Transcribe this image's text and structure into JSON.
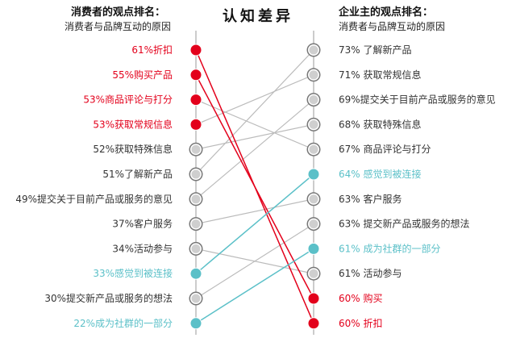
{
  "left": {
    "title": "消费者的观点排名：",
    "subtitle": "消费者与品牌互动的原因"
  },
  "right": {
    "title": "企业主的观点排名：",
    "subtitle": "消费者与品牌互动的原因"
  },
  "center_title": "认知差异",
  "colors": {
    "red": "#e3001b",
    "teal": "#5bc0c8",
    "gray": "#bbbbbb",
    "text": "#333333"
  },
  "chart_data": {
    "type": "slope",
    "left_ranking": [
      {
        "label": "61%折扣",
        "value": 61,
        "color": "red"
      },
      {
        "label": "55%购买产品",
        "value": 55,
        "color": "red"
      },
      {
        "label": "53%商品评论与打分",
        "value": 53,
        "color": "red"
      },
      {
        "label": "53%获取常规信息",
        "value": 53,
        "color": "red"
      },
      {
        "label": "52%获取特殊信息",
        "value": 52,
        "color": "text"
      },
      {
        "label": "51%了解新产品",
        "value": 51,
        "color": "text"
      },
      {
        "label": "49%提交关于目前产品或服务的意见",
        "value": 49,
        "color": "text"
      },
      {
        "label": "37%客户服务",
        "value": 37,
        "color": "text"
      },
      {
        "label": "34%活动参与",
        "value": 34,
        "color": "text"
      },
      {
        "label": "33%感觉到被连接",
        "value": 33,
        "color": "teal"
      },
      {
        "label": "30%提交新产品或服务的想法",
        "value": 30,
        "color": "text"
      },
      {
        "label": "22%成为社群的一部分",
        "value": 22,
        "color": "teal"
      }
    ],
    "right_ranking": [
      {
        "label": "73% 了解新产品",
        "value": 73,
        "color": "text"
      },
      {
        "label": "71% 获取常规信息",
        "value": 71,
        "color": "text"
      },
      {
        "label": "69%提交关于目前产品或服务的意见",
        "value": 69,
        "color": "text"
      },
      {
        "label": "68% 获取特殊信息",
        "value": 68,
        "color": "text"
      },
      {
        "label": "67% 商品评论与打分",
        "value": 67,
        "color": "text"
      },
      {
        "label": "64% 感觉到被连接",
        "value": 64,
        "color": "teal"
      },
      {
        "label": "63% 客户服务",
        "value": 63,
        "color": "text"
      },
      {
        "label": "63% 提交新产品或服务的想法",
        "value": 63,
        "color": "text"
      },
      {
        "label": "61% 成为社群的一部分",
        "value": 61,
        "color": "teal"
      },
      {
        "label": "61% 活动参与",
        "value": 61,
        "color": "text"
      },
      {
        "label": "60% 购买",
        "value": 60,
        "color": "red"
      },
      {
        "label": "60% 折扣",
        "value": 60,
        "color": "red"
      }
    ],
    "links": [
      {
        "from": 0,
        "to": 11,
        "color": "red"
      },
      {
        "from": 1,
        "to": 10,
        "color": "red"
      },
      {
        "from": 2,
        "to": 4,
        "color": "gray"
      },
      {
        "from": 3,
        "to": 1,
        "color": "gray"
      },
      {
        "from": 4,
        "to": 3,
        "color": "gray"
      },
      {
        "from": 5,
        "to": 0,
        "color": "gray"
      },
      {
        "from": 6,
        "to": 2,
        "color": "gray"
      },
      {
        "from": 7,
        "to": 6,
        "color": "gray"
      },
      {
        "from": 8,
        "to": 9,
        "color": "gray"
      },
      {
        "from": 9,
        "to": 5,
        "color": "teal"
      },
      {
        "from": 10,
        "to": 7,
        "color": "gray"
      },
      {
        "from": 11,
        "to": 8,
        "color": "teal"
      }
    ]
  }
}
